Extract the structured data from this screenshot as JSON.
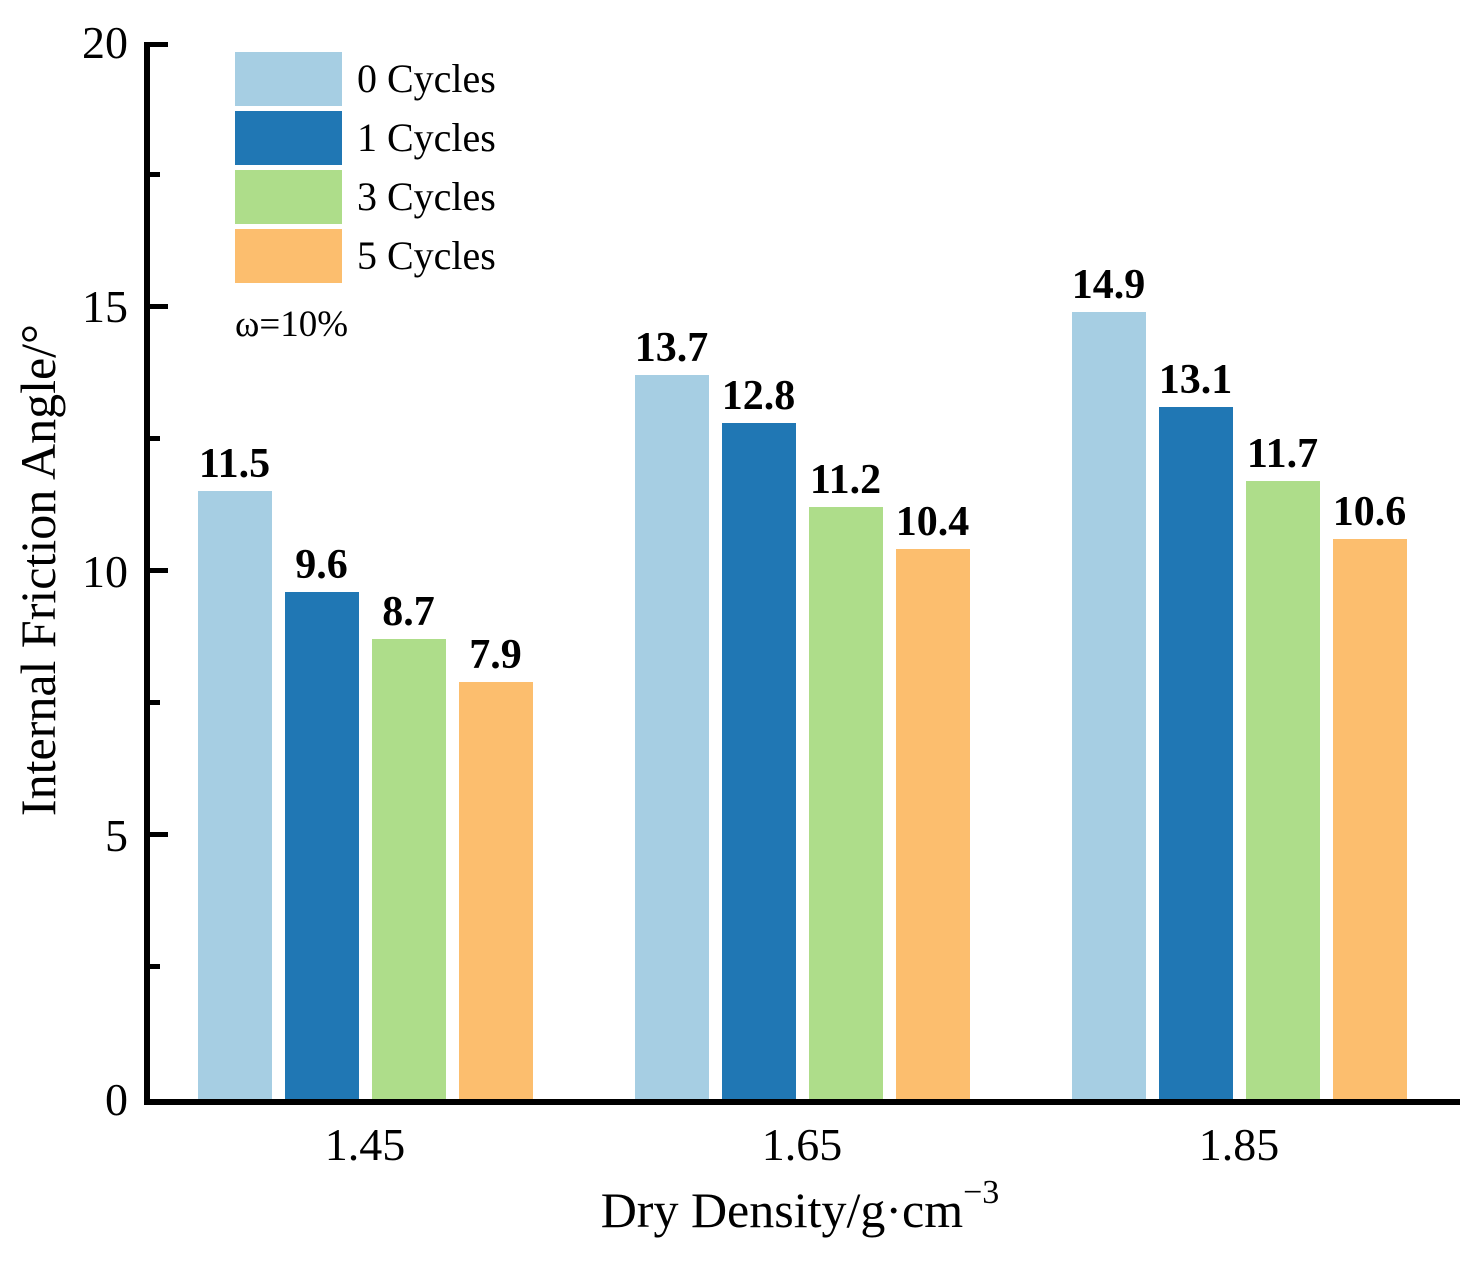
{
  "chart_data": {
    "type": "bar",
    "title": "",
    "categories": [
      "1.45",
      "1.65",
      "1.85"
    ],
    "series": [
      {
        "name": "0 Cycles",
        "color": "#A6CEE3",
        "values": [
          11.5,
          13.7,
          14.9
        ]
      },
      {
        "name": "1 Cycles",
        "color": "#2077B4",
        "values": [
          9.6,
          12.8,
          13.1
        ]
      },
      {
        "name": "3 Cycles",
        "color": "#AEDD8A",
        "values": [
          8.7,
          11.2,
          11.7
        ]
      },
      {
        "name": "5 Cycles",
        "color": "#FCBE6E",
        "values": [
          7.9,
          10.4,
          10.6
        ]
      }
    ],
    "xlabel": "Dry Density/g·cm⁻³",
    "xlabel_main": "Dry Density/g·cm",
    "xlabel_sup": "−3",
    "ylabel": "Internal Friction Angle/°",
    "annotation": "ω=10%",
    "ylim": [
      0,
      20
    ],
    "y_major_ticks": [
      0,
      5,
      10,
      15,
      20
    ],
    "y_minor_ticks": [
      2.5,
      7.5,
      12.5,
      17.5
    ],
    "bar_value_labels": true,
    "value_label_decimals": 1,
    "legend_position": "top-left",
    "grid": false,
    "axis_color": "#000000",
    "text_color": "#000000",
    "background_color": "#FFFFFF"
  }
}
